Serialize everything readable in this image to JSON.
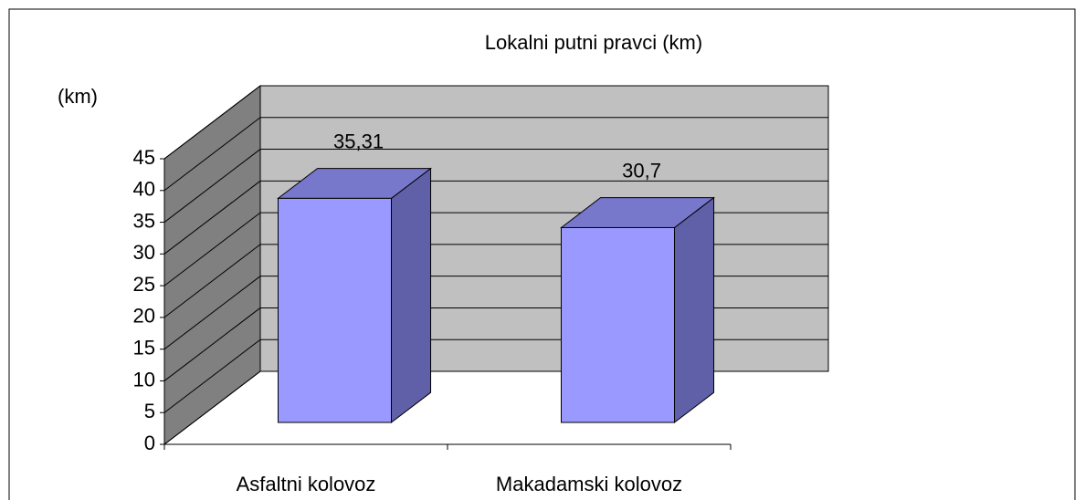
{
  "chart_data": {
    "type": "bar3d",
    "title": "Lokalni putni pravci (km)",
    "y_label": "(km)",
    "categories": [
      "Asfaltni kolovoz",
      "Makadamski kolovoz"
    ],
    "values": [
      35.31,
      30.7
    ],
    "value_labels": [
      "35,31",
      "30,7"
    ],
    "ylim": [
      0,
      45
    ],
    "yticks": [
      0,
      5,
      10,
      15,
      20,
      25,
      30,
      35,
      40,
      45
    ],
    "grid": true,
    "color": "#9999ff",
    "wall_color": "#c0c0c0",
    "side_wall_color": "#808080"
  }
}
